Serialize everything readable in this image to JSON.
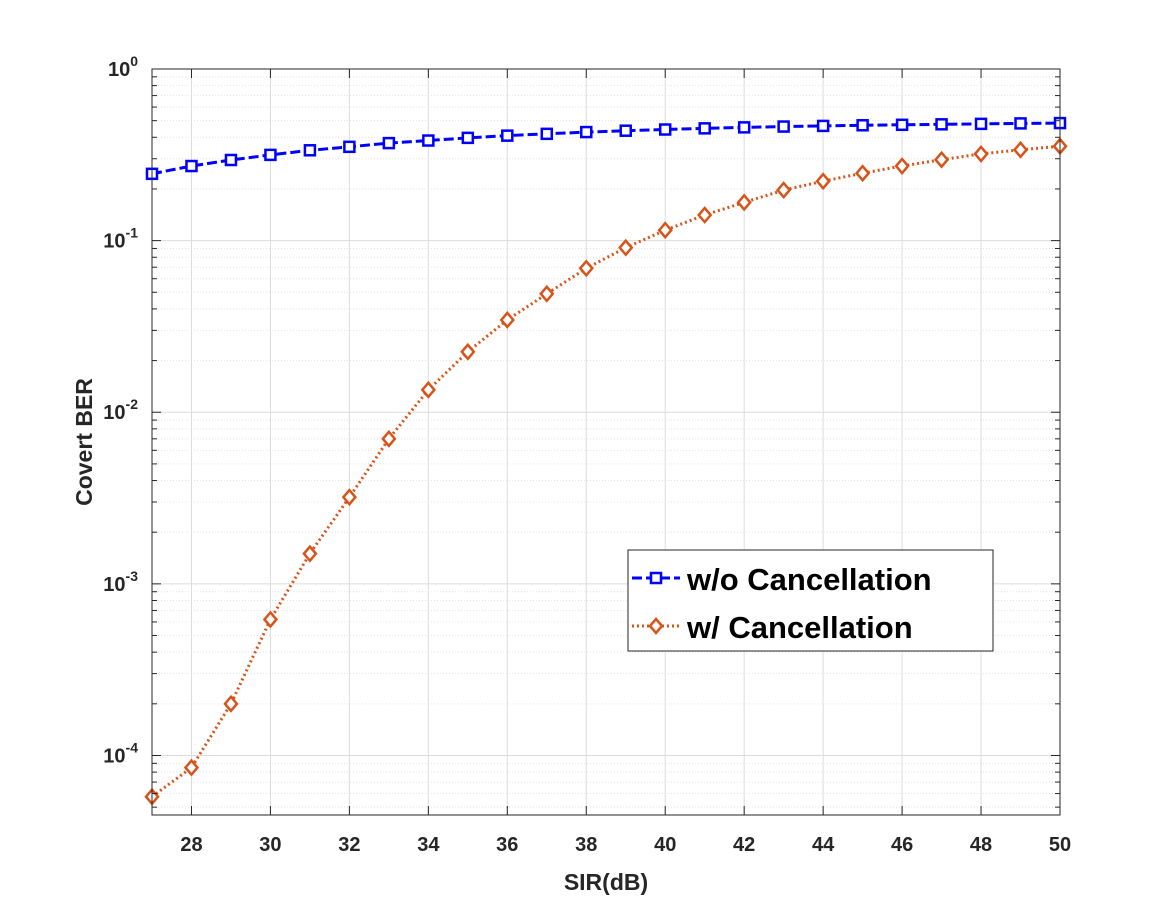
{
  "chart_data": {
    "type": "line",
    "title": "",
    "xlabel": "SIR(dB)",
    "ylabel": "Covert BER",
    "xlim": [
      27,
      50
    ],
    "ylim": [
      4.5e-05,
      1
    ],
    "yscale": "log",
    "grid": true,
    "legend_position": "lower-right",
    "x_ticks": [
      28,
      30,
      32,
      34,
      36,
      38,
      40,
      42,
      44,
      46,
      48,
      50
    ],
    "y_ticks": [
      {
        "value": 0.0001,
        "base": "10",
        "exponent": "-4"
      },
      {
        "value": 0.001,
        "base": "10",
        "exponent": "-3"
      },
      {
        "value": 0.01,
        "base": "10",
        "exponent": "-2"
      },
      {
        "value": 0.1,
        "base": "10",
        "exponent": "-1"
      },
      {
        "value": 1,
        "base": "10",
        "exponent": "0"
      }
    ],
    "x": [
      27,
      28,
      29,
      30,
      31,
      32,
      33,
      34,
      35,
      36,
      37,
      38,
      39,
      40,
      41,
      42,
      43,
      44,
      45,
      46,
      47,
      48,
      49,
      50
    ],
    "series": [
      {
        "name": "w/o Cancellation",
        "color": "#0000ff",
        "marker": "square",
        "linestyle": "dashed",
        "values": [
          0.245,
          0.272,
          0.295,
          0.316,
          0.336,
          0.352,
          0.37,
          0.383,
          0.397,
          0.409,
          0.419,
          0.429,
          0.437,
          0.444,
          0.451,
          0.457,
          0.462,
          0.466,
          0.47,
          0.473,
          0.476,
          0.479,
          0.482,
          0.484
        ]
      },
      {
        "name": "w/ Cancellation",
        "color": "#d95319",
        "marker": "diamond",
        "linestyle": "dotted",
        "values": [
          5.75e-05,
          8.5e-05,
          0.0002,
          0.00062,
          0.0015,
          0.0032,
          0.007,
          0.0135,
          0.0225,
          0.0345,
          0.049,
          0.069,
          0.091,
          0.115,
          0.141,
          0.167,
          0.197,
          0.222,
          0.247,
          0.272,
          0.296,
          0.32,
          0.338,
          0.355
        ]
      }
    ]
  }
}
